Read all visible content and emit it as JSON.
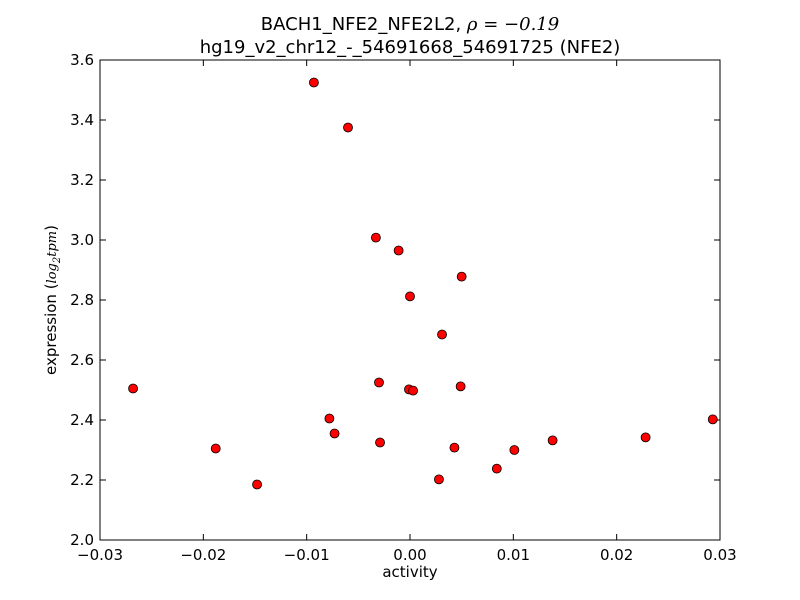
{
  "chart_data": {
    "type": "scatter",
    "title_line1_prefix": "BACH1_NFE2_NFE2L2, ",
    "title_line1_math": "ρ = −0.19",
    "title_line2": "hg19_v2_chr12_-_54691668_54691725 (NFE2)",
    "xlabel": "activity",
    "ylabel_prefix": "expression (",
    "ylabel_math": "log",
    "ylabel_sub": "2",
    "ylabel_math2": "tpm",
    "ylabel_suffix": ")",
    "xlim": [
      -0.03,
      0.03
    ],
    "ylim": [
      2.0,
      3.6
    ],
    "xticks": [
      -0.03,
      -0.02,
      -0.01,
      0.0,
      0.01,
      0.02,
      0.03
    ],
    "xtick_labels": [
      "−0.03",
      "−0.02",
      "−0.01",
      "0.00",
      "0.01",
      "0.02",
      "0.03"
    ],
    "yticks": [
      2.0,
      2.2,
      2.4,
      2.6,
      2.8,
      3.0,
      3.2,
      3.4,
      3.6
    ],
    "ytick_labels": [
      "2.0",
      "2.2",
      "2.4",
      "2.6",
      "2.8",
      "3.0",
      "3.2",
      "3.4",
      "3.6"
    ],
    "grid": false,
    "marker_color": "#ff0000",
    "marker_edge": "#000000",
    "points": [
      {
        "x": -0.0268,
        "y": 2.505
      },
      {
        "x": -0.0188,
        "y": 2.305
      },
      {
        "x": -0.0148,
        "y": 2.185
      },
      {
        "x": -0.0093,
        "y": 3.525
      },
      {
        "x": -0.006,
        "y": 3.375
      },
      {
        "x": -0.0078,
        "y": 2.405
      },
      {
        "x": -0.0073,
        "y": 2.355
      },
      {
        "x": -0.0033,
        "y": 3.008
      },
      {
        "x": -0.003,
        "y": 2.525
      },
      {
        "x": -0.0029,
        "y": 2.325
      },
      {
        "x": -0.0011,
        "y": 2.965
      },
      {
        "x": -0.0001,
        "y": 2.502
      },
      {
        "x": 0.0,
        "y": 2.812
      },
      {
        "x": 0.0003,
        "y": 2.498
      },
      {
        "x": 0.0028,
        "y": 2.202
      },
      {
        "x": 0.0031,
        "y": 2.685
      },
      {
        "x": 0.0043,
        "y": 2.308
      },
      {
        "x": 0.0049,
        "y": 2.512
      },
      {
        "x": 0.005,
        "y": 2.878
      },
      {
        "x": 0.0084,
        "y": 2.238
      },
      {
        "x": 0.0101,
        "y": 2.3
      },
      {
        "x": 0.0138,
        "y": 2.332
      },
      {
        "x": 0.0228,
        "y": 2.342
      },
      {
        "x": 0.0293,
        "y": 2.402
      }
    ]
  }
}
